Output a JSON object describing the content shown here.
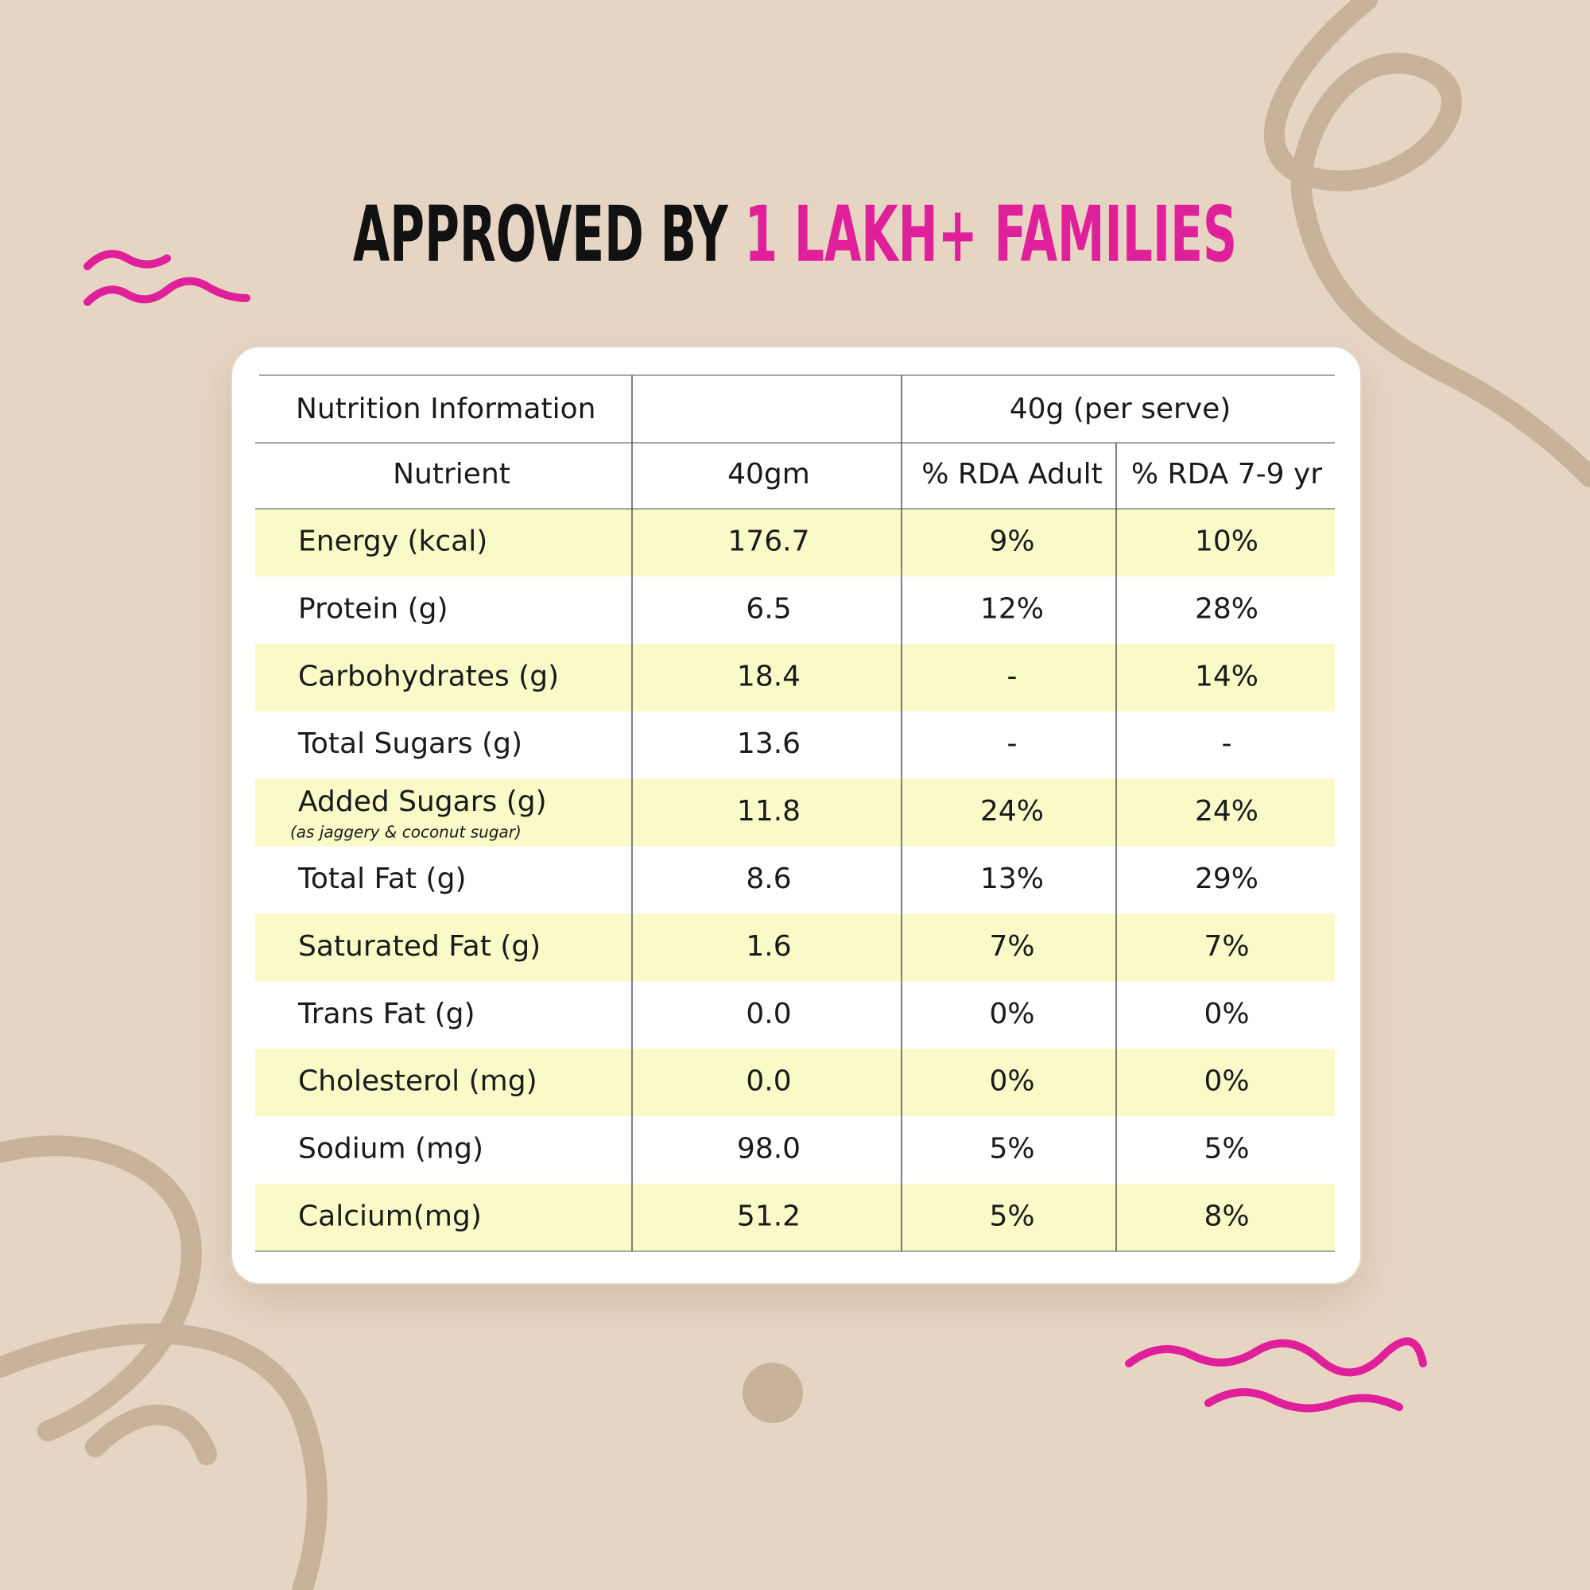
{
  "header": {
    "title_part1": "APPROVED BY",
    "title_part2": "1 LAKH+ FAMILIES"
  },
  "table": {
    "caption": "Nutrition Information",
    "serve": "40g (per serve)",
    "columns": [
      "Nutrient",
      "40gm",
      "% RDA Adult",
      "% RDA 7-9 yr"
    ],
    "rows": [
      [
        "Energy (kcal)",
        "176.7",
        "9%",
        "10%"
      ],
      [
        "Protein (g)",
        "6.5",
        "12%",
        "28%"
      ],
      [
        "Carbohydrates (g)",
        "18.4",
        "-",
        "14%"
      ],
      [
        "Total Sugars (g)",
        "13.6",
        "-",
        "-"
      ],
      [
        "Added Sugars (g)",
        "11.8",
        "24%",
        "24%"
      ],
      [
        "Total Fat (g)",
        "8.6",
        "13%",
        "29%"
      ],
      [
        "Saturated Fat (g)",
        "1.6",
        "7%",
        "7%"
      ],
      [
        "Trans Fat (g)",
        "0.0",
        "0%",
        "0%"
      ],
      [
        "Cholesterol (mg)",
        "0.0",
        "0%",
        "0%"
      ],
      [
        "Sodium (mg)",
        "98.0",
        "5%",
        "5%"
      ],
      [
        "Calcium(mg)",
        "51.2",
        "5%",
        "8%"
      ]
    ],
    "added_sugars_note": "(as jaggery & coconut sugar)"
  }
}
